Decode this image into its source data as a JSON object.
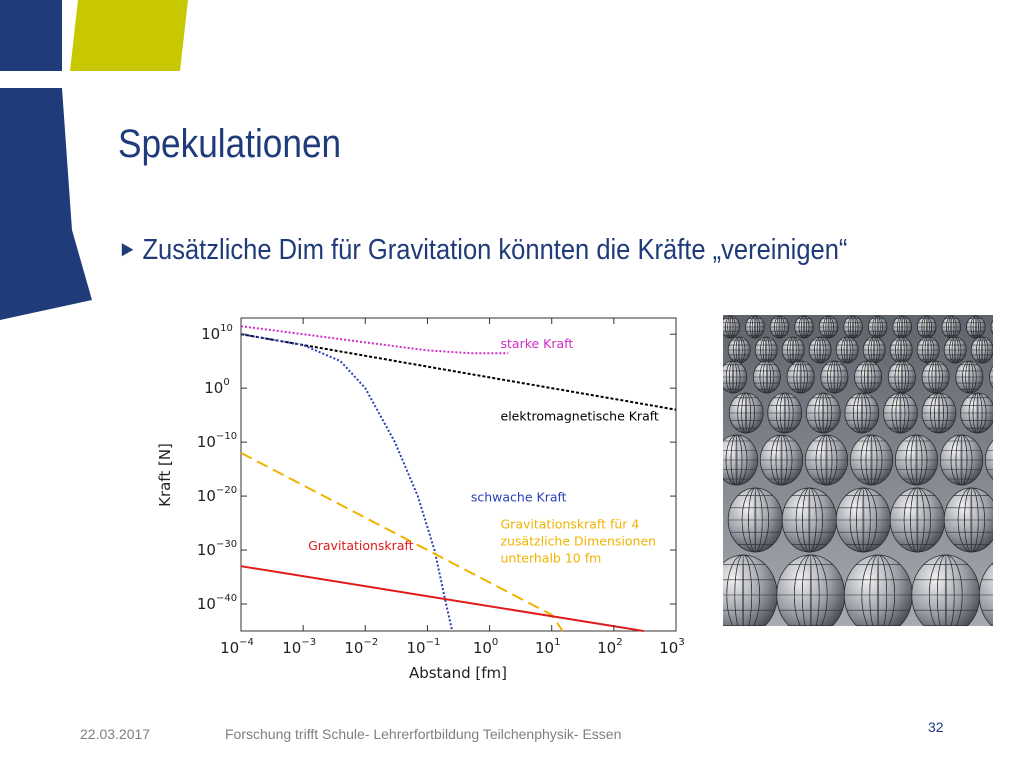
{
  "slide": {
    "title": "Spekulationen",
    "bullet_marker": "►",
    "bullet": "Zusätzliche Dim für Gravitation könnten die Kräfte „vereinigen“"
  },
  "footer": {
    "date": "22.03.2017",
    "text": "Forschung trifft Schule- Lehrerfortbildung Teilchenphysik- Essen",
    "page": "32"
  },
  "colors": {
    "navy": "#1f3b7a",
    "olive": "#c8c800",
    "strong": "#d02cc8",
    "em": "#000000",
    "weak": "#2b3fb5",
    "gravity": "#e01b1b",
    "gravity_extra": "#f0b400"
  },
  "chart_data": {
    "type": "line",
    "xlabel": "Abstand [fm]",
    "ylabel": "Kraft [N]",
    "xscale": "log",
    "yscale": "log",
    "xlim": [
      0.0001,
      1000
    ],
    "ylim": [
      1e-45,
      10000000000000.0
    ],
    "x_ticks": [
      {
        "base": "10",
        "exp": "−4",
        "value": 0.0001
      },
      {
        "base": "10",
        "exp": "−3",
        "value": 0.001
      },
      {
        "base": "10",
        "exp": "−2",
        "value": 0.01
      },
      {
        "base": "10",
        "exp": "−1",
        "value": 0.1
      },
      {
        "base": "10",
        "exp": "0",
        "value": 1
      },
      {
        "base": "10",
        "exp": "1",
        "value": 10
      },
      {
        "base": "10",
        "exp": "2",
        "value": 100
      },
      {
        "base": "10",
        "exp": "3",
        "value": 1000
      }
    ],
    "y_ticks": [
      {
        "base": "10",
        "exp": "10",
        "value": 10000000000.0
      },
      {
        "base": "10",
        "exp": "0",
        "value": 1
      },
      {
        "base": "10",
        "exp": "−10",
        "value": 1e-10
      },
      {
        "base": "10",
        "exp": "−20",
        "value": 1e-20
      },
      {
        "base": "10",
        "exp": "−30",
        "value": 1e-30
      },
      {
        "base": "10",
        "exp": "−40",
        "value": 1e-40
      }
    ],
    "series": [
      {
        "name": "starke Kraft",
        "color": "#d02cc8",
        "dash": "2,2",
        "points": [
          [
            0.0001,
            300000000000.0
          ],
          [
            0.001,
            10000000000.0
          ],
          [
            0.01,
            300000000.0
          ],
          [
            0.1,
            10000000.0
          ],
          [
            0.5,
            3000000.0
          ],
          [
            2,
            3000000.0
          ]
        ]
      },
      {
        "name": "elektromagnetische Kraft",
        "color": "#000000",
        "dash": "3,2",
        "points": [
          [
            0.0001,
            10000000000.0
          ],
          [
            0.01,
            1000000.0
          ],
          [
            1,
            100.0
          ],
          [
            100,
            0.01
          ],
          [
            1000,
            0.0001
          ]
        ]
      },
      {
        "name": "schwache Kraft",
        "color": "#2b3fb5",
        "dash": "2,2",
        "points": [
          [
            0.0001,
            10000000000.0
          ],
          [
            0.001,
            100000000.0
          ],
          [
            0.004,
            100000.0
          ],
          [
            0.01,
            1.0
          ],
          [
            0.03,
            1e-10
          ],
          [
            0.07,
            1e-20
          ],
          [
            0.13,
            1e-30
          ],
          [
            0.2,
            1e-40
          ],
          [
            0.25,
            1e-45
          ]
        ]
      },
      {
        "name": "Gravitationskraft für 4 zusätzliche Dimensionen unterhalb 10 fm",
        "color": "#f0b400",
        "dash": "12,6",
        "points": [
          [
            0.0001,
            1e-12
          ],
          [
            10,
            1e-42
          ],
          [
            15,
            1e-45
          ]
        ]
      },
      {
        "name": "Gravitationskraft",
        "color": "#e01b1b",
        "dash": "",
        "points": [
          [
            0.0001,
            1e-33
          ],
          [
            300,
            1e-45
          ]
        ]
      }
    ],
    "labels": [
      {
        "lines": [
          "starke Kraft"
        ],
        "color": "#d02cc8",
        "x": 1.5,
        "y": 30000000.0
      },
      {
        "lines": [
          "elektromagnetische Kraft"
        ],
        "color": "#000000",
        "x": 1.5,
        "y": 1e-06
      },
      {
        "lines": [
          "schwache Kraft"
        ],
        "color": "#2b3fb5",
        "x": 0.5,
        "y": 1e-21
      },
      {
        "lines": [
          "Gravitationskraft für 4",
          "zusätzliche Dimensionen",
          "unterhalb 10 fm"
        ],
        "color": "#f0b400",
        "x": 1.5,
        "y": 1e-26
      },
      {
        "lines": [
          "Gravitationskraft"
        ],
        "color": "#e01b1b",
        "x": 0.0012,
        "y": 1e-30
      }
    ]
  }
}
